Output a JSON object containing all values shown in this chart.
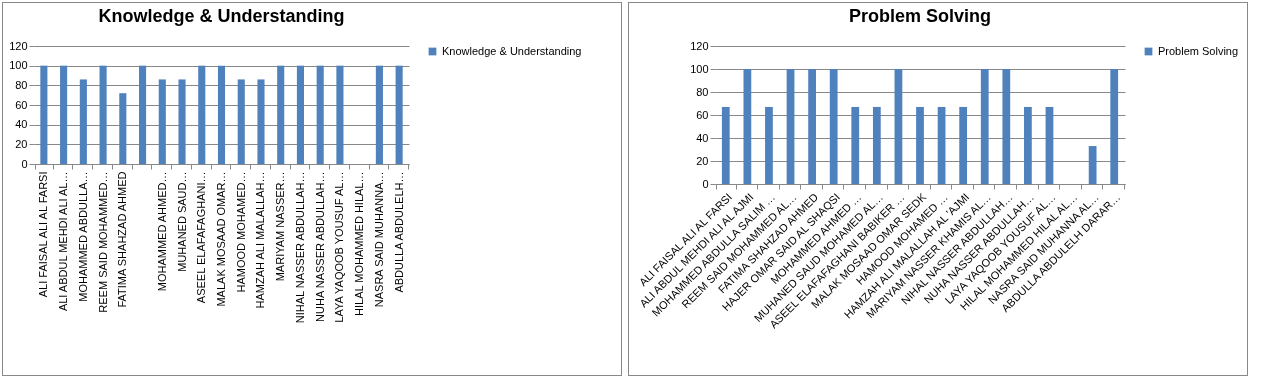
{
  "chart_data": [
    {
      "type": "bar",
      "title": "Knowledge & Understanding",
      "categories": [
        "ALI FAISAL ALI AL FARSI",
        "ALI ABDUL MEHDI ALI AL…",
        "MOHAMMED ABDULLA…",
        "REEM SAID MOHAMMED…",
        "FATIMA  SHAHZAD AHMED",
        null,
        "MOHAMMED AHMED…",
        "MUHANED SAUD…",
        "ASEEL ELAFAFAGHANI…",
        "MALAK MOSAAD OMAR…",
        "HAMOOD MOHAMED…",
        "HAMZAH ALI MALALLAH…",
        "MARIYAM NASSER…",
        "NIHAL NASSER ABDULLAH…",
        "NUHA NASSER ABDULLAH…",
        "LAYA YAQOOB YOUSUF AL…",
        "HILAL MOHAMMED HILAL…",
        "NASRA SAID MUHANNA…",
        "ABDULLA  ABDULELH…"
      ],
      "series": [
        {
          "name": "Knowledge & Understanding",
          "color": "#4f81bd",
          "values": [
            100,
            100,
            86,
            100,
            72,
            100,
            86,
            86,
            100,
            100,
            86,
            86,
            100,
            100,
            100,
            100,
            0,
            100,
            100
          ]
        }
      ],
      "ylim": [
        0,
        120
      ],
      "yticks": [
        0,
        20,
        40,
        60,
        80,
        100,
        120
      ],
      "grid": "y",
      "legend": "right"
    },
    {
      "type": "bar",
      "title": "Problem Solving",
      "categories": [
        "ALI FAISAL ALI AL FARSI",
        "ALI ABDUL MEHDI ALI AL AJMI",
        "MOHAMMED ABDULLA SALIM …",
        "REEM SAID MOHAMMED  AL…",
        "FATIMA  SHAHZAD AHMED",
        "HAJER OMAR SAID AL SHAQSI",
        "MOHAMMED AHMED …",
        "MUHANED SAUD MOHAMED AL…",
        "ASEEL ELAFAFAGHANI BABIKER …",
        "MALAK MOSAAD OMAR SEDK",
        "HAMOOD MOHAMED …",
        "HAMZAH ALI MALALLAH AL 'AJMI",
        "MARIYAM NASSER KHAMIS AL…",
        "NIHAL NASSER ABDULLAH…",
        "NUHA NASSER ABDULLAH…",
        "LAYA YAQOOB YOUSUF AL…",
        "HILAL MOHAMMED HILAL AL…",
        "NASRA SAID MUHANNA  AL…",
        "ABDULLA ABDULELH DARAR…"
      ],
      "series": [
        {
          "name": "Problem Solving",
          "color": "#4f81bd",
          "values": [
            67,
            100,
            67,
            100,
            100,
            100,
            67,
            67,
            100,
            67,
            67,
            67,
            100,
            100,
            67,
            67,
            0,
            33,
            100
          ]
        }
      ],
      "ylim": [
        0,
        120
      ],
      "yticks": [
        0,
        20,
        40,
        60,
        80,
        100,
        120
      ],
      "grid": "y",
      "legend": "right"
    }
  ]
}
